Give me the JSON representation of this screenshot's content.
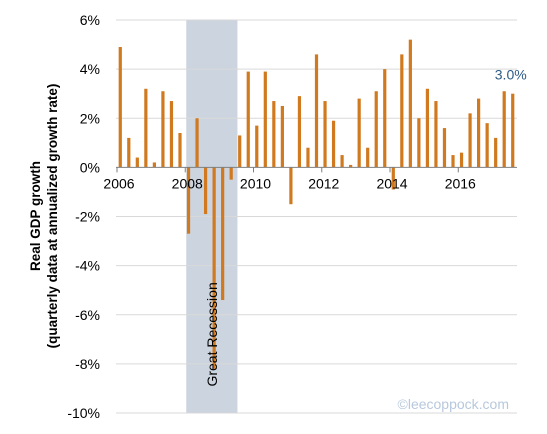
{
  "chart_data": {
    "type": "bar",
    "ylabel_line1": "Real GDP growth",
    "ylabel_line2": "(quarterly data at annualized growth rate)",
    "ylim": [
      -10,
      6
    ],
    "yticks": [
      -10,
      -8,
      -6,
      -4,
      -2,
      0,
      2,
      4,
      6
    ],
    "ytick_labels": [
      "-10%",
      "-8%",
      "-6%",
      "-4%",
      "-2%",
      "0%",
      "2%",
      "4%",
      "6%"
    ],
    "xticks": [
      {
        "label": "2006",
        "index": 0
      },
      {
        "label": "2008",
        "index": 8
      },
      {
        "label": "2010",
        "index": 16
      },
      {
        "label": "2012",
        "index": 24
      },
      {
        "label": "2014",
        "index": 32
      },
      {
        "label": "2016",
        "index": 40
      }
    ],
    "quarters": [
      "2006Q1",
      "2006Q2",
      "2006Q3",
      "2006Q4",
      "2007Q1",
      "2007Q2",
      "2007Q3",
      "2007Q4",
      "2008Q1",
      "2008Q2",
      "2008Q3",
      "2008Q4",
      "2009Q1",
      "2009Q2",
      "2009Q3",
      "2009Q4",
      "2010Q1",
      "2010Q2",
      "2010Q3",
      "2010Q4",
      "2011Q1",
      "2011Q2",
      "2011Q3",
      "2011Q4",
      "2012Q1",
      "2012Q2",
      "2012Q3",
      "2012Q4",
      "2013Q1",
      "2013Q2",
      "2013Q3",
      "2013Q4",
      "2014Q1",
      "2014Q2",
      "2014Q3",
      "2014Q4",
      "2015Q1",
      "2015Q2",
      "2015Q3",
      "2015Q4",
      "2016Q1",
      "2016Q2",
      "2016Q3",
      "2016Q4",
      "2017Q1",
      "2017Q2",
      "2017Q3"
    ],
    "values": [
      4.9,
      1.2,
      0.4,
      3.2,
      0.2,
      3.1,
      2.7,
      1.4,
      -2.7,
      2.0,
      -1.9,
      -8.2,
      -5.4,
      -0.5,
      1.3,
      3.9,
      1.7,
      3.9,
      2.7,
      2.5,
      -1.5,
      2.9,
      0.8,
      4.6,
      2.7,
      1.9,
      0.5,
      0.1,
      2.8,
      0.8,
      3.1,
      4.0,
      -0.9,
      4.6,
      5.2,
      2.0,
      3.2,
      2.7,
      1.6,
      0.5,
      0.6,
      2.2,
      2.8,
      1.8,
      1.2,
      3.1,
      3.0
    ],
    "bar_color": "#d0791f",
    "recession_shade": {
      "label": "Great Recession",
      "start_index": 8,
      "end_index": 13,
      "color": "#ccd4df"
    },
    "annotation": {
      "text": "3.0%",
      "index": 46,
      "color": "#2e5a86"
    },
    "watermark": {
      "text": "©leecoppock.com",
      "color": "#b7c8dd"
    },
    "grid": true,
    "grid_color": "#d9d9d9",
    "legend": "none"
  }
}
